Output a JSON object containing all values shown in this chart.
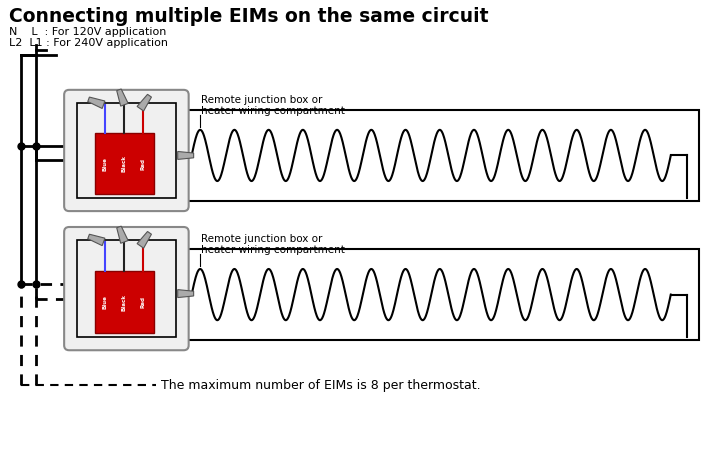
{
  "title": "Connecting multiple EIMs on the same circuit",
  "sub1": "N    L  : For 120V application",
  "sub2": "L2  L1 : For 240V application",
  "remote_label_line1": "Remote junction box or",
  "remote_label_line2": "heater wiring compartment",
  "bottom_note": "The maximum number of EIMs is 8 per thermostat.",
  "bg_color": "#ffffff",
  "text_color": "#000000",
  "red_color": "#cc0000",
  "gray_color": "#aaaaaa",
  "line_color": "#000000"
}
